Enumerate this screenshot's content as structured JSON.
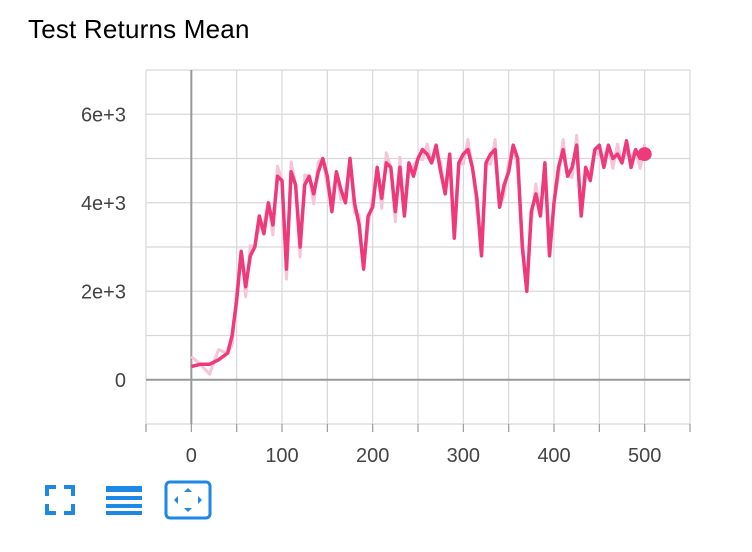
{
  "page": {
    "title": "Test Returns Mean"
  },
  "colors": {
    "series": "#ee3a7b",
    "series_faint": "#f7c4d8",
    "grid": "#d8d8d8",
    "axis": "#999999",
    "icon": "#1e88e5"
  },
  "toolbar": {
    "expand_icon": "fullscreen-icon",
    "list_icon": "list-icon",
    "fit_icon": "fit-domain-icon"
  },
  "chart_data": {
    "type": "line",
    "title": "Test Returns Mean",
    "xlabel": "",
    "ylabel": "",
    "x_ticks": [
      "0",
      "100",
      "200",
      "300",
      "400",
      "500"
    ],
    "y_ticks": [
      "0",
      "2e+3",
      "4e+3",
      "6e+3"
    ],
    "xlim": [
      -50,
      550
    ],
    "ylim": [
      -1000,
      7000
    ],
    "grid": true,
    "series": [
      {
        "x": [
          0,
          10,
          20,
          30,
          40,
          45,
          50,
          55,
          60,
          65,
          70,
          75,
          80,
          85,
          90,
          95,
          100,
          105,
          110,
          115,
          120,
          125,
          130,
          135,
          140,
          145,
          150,
          155,
          160,
          165,
          170,
          175,
          180,
          185,
          190,
          195,
          200,
          205,
          210,
          215,
          220,
          225,
          230,
          235,
          240,
          245,
          250,
          255,
          260,
          265,
          270,
          275,
          280,
          285,
          290,
          295,
          300,
          305,
          310,
          315,
          320,
          325,
          330,
          335,
          340,
          345,
          350,
          355,
          360,
          365,
          370,
          375,
          380,
          385,
          390,
          395,
          400,
          405,
          410,
          415,
          420,
          425,
          430,
          435,
          440,
          445,
          450,
          455,
          460,
          465,
          470,
          475,
          480,
          485,
          490,
          495,
          500
        ],
        "y": [
          300,
          350,
          350,
          450,
          600,
          1000,
          1800,
          2900,
          2100,
          2800,
          3000,
          3700,
          3300,
          4000,
          3500,
          4600,
          4500,
          2500,
          4700,
          4400,
          3000,
          4400,
          4600,
          4200,
          4700,
          5000,
          4600,
          3800,
          4700,
          4300,
          4000,
          5000,
          4000,
          3500,
          2500,
          3700,
          3900,
          4800,
          4100,
          4900,
          4800,
          3800,
          4800,
          3700,
          4900,
          4600,
          5000,
          5200,
          5100,
          4900,
          5300,
          4700,
          4200,
          5100,
          3200,
          4900,
          5100,
          5200,
          4800,
          4100,
          2800,
          4900,
          5100,
          5200,
          3900,
          4400,
          4700,
          5300,
          5000,
          3000,
          2000,
          3800,
          4200,
          3700,
          4900,
          2800,
          4000,
          4800,
          5200,
          4600,
          4800,
          5300,
          3700,
          4800,
          4500,
          5200,
          5300,
          4800,
          5300,
          5000,
          5100,
          4900,
          5400,
          4800,
          5200,
          5000,
          5100
        ]
      }
    ]
  }
}
